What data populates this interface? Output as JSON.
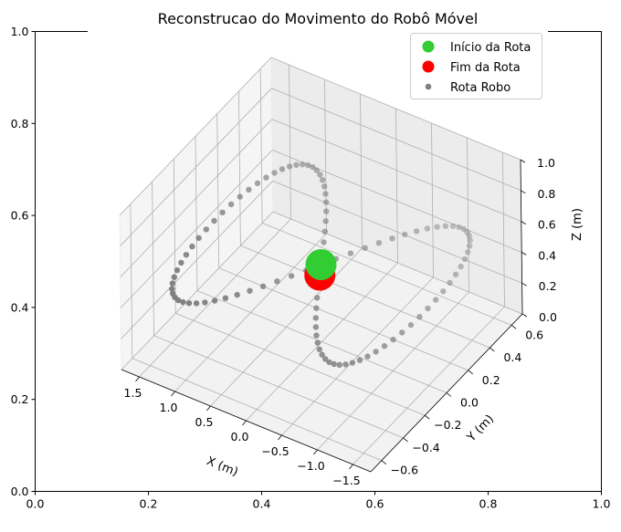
{
  "chart_data": {
    "type": "scatter3d",
    "title": "Reconstrucao do Movimento do Robô Móvel",
    "outer_axes": {
      "xticks": [
        "0.0",
        "0.2",
        "0.4",
        "0.6",
        "0.8",
        "1.0"
      ],
      "yticks": [
        "0.0",
        "0.2",
        "0.4",
        "0.6",
        "0.8",
        "1.0"
      ],
      "xlim": [
        0,
        1
      ],
      "ylim": [
        0,
        1
      ]
    },
    "axes3d": {
      "xlabel": "X (m)",
      "ylabel": "Y (m)",
      "zlabel": "Z (m)",
      "xlim": [
        -1.75,
        1.75
      ],
      "ylim": [
        -0.7,
        0.7
      ],
      "zlim": [
        0,
        1
      ],
      "xticks": [
        -1.5,
        -1.0,
        -0.5,
        0.0,
        0.5,
        1.0,
        1.5
      ],
      "xticklabels": [
        "−1.5",
        "−1.0",
        "−0.5",
        "0.0",
        "0.5",
        "1.0",
        "1.5"
      ],
      "yticks": [
        -0.6,
        -0.4,
        -0.2,
        0.0,
        0.2,
        0.4,
        0.6
      ],
      "yticklabels": [
        "−0.6",
        "−0.4",
        "−0.2",
        "0.0",
        "0.2",
        "0.4",
        "0.6"
      ],
      "zticks": [
        0.0,
        0.2,
        0.4,
        0.6,
        0.8,
        1.0
      ],
      "zticklabels": [
        "0.0",
        "0.2",
        "0.4",
        "0.6",
        "0.8",
        "1.0"
      ],
      "grid": true
    },
    "legend": {
      "placement": "upper right",
      "entries": [
        "Início da Rota",
        "Fim da Rota",
        "Rota Robo"
      ]
    },
    "series": [
      {
        "name": "Rota Robo",
        "kind": "path",
        "color": "#808080",
        "marker": "o",
        "path": "figure-eight: x = 1.5·sin(t), y = 0.6·sin(2t), z = 0.5, t ∈ [0, 2π)",
        "points": 100
      },
      {
        "name": "Início da Rota",
        "color": "#32cd32",
        "point": [
          0.0,
          0.0,
          0.5
        ]
      },
      {
        "name": "Fim da Rota",
        "color": "#ff0000",
        "point": [
          -0.09,
          -0.07,
          0.5
        ]
      }
    ]
  }
}
